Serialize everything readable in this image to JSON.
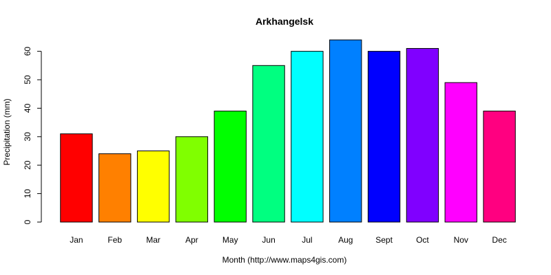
{
  "chart_data": {
    "type": "bar",
    "title": "Arkhangelsk",
    "xlabel": "Month (http://www.maps4gis.com)",
    "ylabel": "Precipitation (mm)",
    "ylim": [
      0,
      65
    ],
    "yticks": [
      0,
      10,
      20,
      30,
      40,
      50,
      60
    ],
    "grid": false,
    "categories": [
      "Jan",
      "Feb",
      "Mar",
      "Apr",
      "May",
      "Jun",
      "Jul",
      "Aug",
      "Sept",
      "Oct",
      "Nov",
      "Dec"
    ],
    "values": [
      31,
      24,
      25,
      30,
      39,
      55,
      60,
      64,
      60,
      61,
      49,
      39
    ],
    "colors": [
      "#FF0000",
      "#FF8000",
      "#FFFF00",
      "#80FF00",
      "#00FF00",
      "#00FF80",
      "#00FFFF",
      "#0080FF",
      "#0000FF",
      "#8000FF",
      "#FF00FF",
      "#FF0080"
    ]
  }
}
